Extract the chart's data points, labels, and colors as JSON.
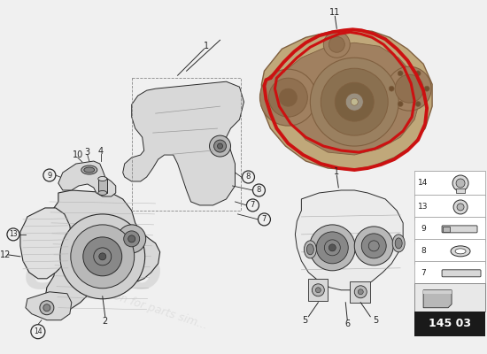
{
  "bg": "#f0f0f0",
  "lc": "#2a2a2a",
  "rc": "#cc1111",
  "page_code": "145 03",
  "wm_color": "#c8c8c8",
  "legend_bg": "#1a1a1a",
  "legend_fg": "#ffffff",
  "part_gray_light": "#d8d8d8",
  "part_gray_mid": "#b8b8b8",
  "part_gray_dark": "#888888",
  "eng_brown_light": "#c0a87a",
  "eng_brown_mid": "#a08060",
  "eng_brown_dark": "#806040"
}
